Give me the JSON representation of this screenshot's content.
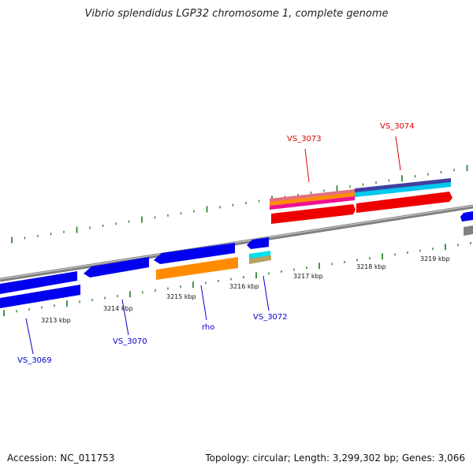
{
  "title": "Vibrio splendidus LGP32 chromosome 1, complete genome",
  "footer": {
    "accession": "Accession: NC_011753",
    "summary": "Topology: circular; Length: 3,299,302 bp; Genes: 3,066"
  },
  "colors": {
    "backbone": "#8a8a8a",
    "tick": "#1a7a1a",
    "forward_label": "#dd0000",
    "reverse_label": "#0000cc",
    "blue_gene": "#0000ee",
    "red_gene": "#ee0000",
    "orange_gene": "#ff8c00"
  },
  "scale": {
    "kbp_labels": [
      "3213 kbp",
      "3214 kbp",
      "3215 kbp",
      "3216 kbp",
      "3217 kbp",
      "3218 kbp",
      "3219 kbp"
    ]
  },
  "genes": {
    "forward": [
      {
        "label": "VS_3073"
      },
      {
        "label": "VS_3074"
      }
    ],
    "reverse": [
      {
        "label": "VS_3069"
      },
      {
        "label": "VS_3070"
      },
      {
        "label": "rho"
      },
      {
        "label": "VS_3072"
      }
    ]
  }
}
